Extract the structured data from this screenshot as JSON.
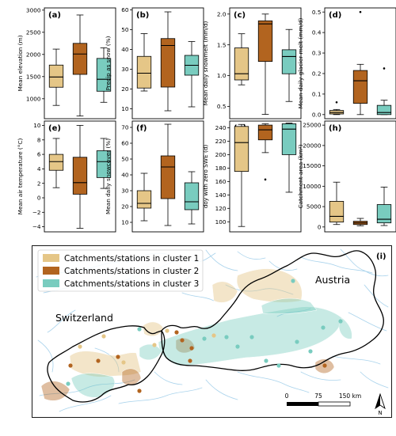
{
  "colors": {
    "cluster1": "#e5c687",
    "cluster2": "#b2641f",
    "cluster3": "#79ccbf",
    "median": "#000000",
    "river": "#a9d3ec",
    "border": "#000000"
  },
  "chart_data": [
    {
      "type": "box",
      "panel_label": "(a)",
      "ylabel": "Mean elevation (m)",
      "ylim": [
        550,
        3050
      ],
      "yticks": [
        1000,
        1500,
        2000,
        2500,
        3000
      ],
      "ytick_labels": [
        "1000",
        "1500",
        "2000",
        "2500",
        "3000"
      ],
      "boxes": [
        {
          "cluster": 1,
          "whislo": 850,
          "q1": 1260,
          "med": 1490,
          "q3": 1760,
          "whishi": 2120,
          "fliers": []
        },
        {
          "cluster": 2,
          "whislo": 610,
          "q1": 1550,
          "med": 2010,
          "q3": 2250,
          "whishi": 2890,
          "fliers": []
        },
        {
          "cluster": 3,
          "whislo": 920,
          "q1": 1170,
          "med": 1440,
          "q3": 1910,
          "whishi": 2150,
          "fliers": []
        }
      ]
    },
    {
      "type": "box",
      "panel_label": "(b)",
      "ylabel": "Precip as snow (%)",
      "ylim": [
        5,
        61
      ],
      "yticks": [
        10,
        20,
        30,
        40,
        50,
        60
      ],
      "ytick_labels": [
        "10",
        "20",
        "30",
        "40",
        "50",
        "60"
      ],
      "boxes": [
        {
          "cluster": 1,
          "whislo": 19,
          "q1": 20.5,
          "med": 28,
          "q3": 36.5,
          "whishi": 48,
          "fliers": []
        },
        {
          "cluster": 2,
          "whislo": 9,
          "q1": 21,
          "med": 42,
          "q3": 45.5,
          "whishi": 59,
          "fliers": []
        },
        {
          "cluster": 3,
          "whislo": 11,
          "q1": 27,
          "med": 32,
          "q3": 37,
          "whishi": 44,
          "fliers": []
        }
      ]
    },
    {
      "type": "box",
      "panel_label": "(c)",
      "ylabel": "Mean daily snowmelt (mm/d)",
      "ylim": [
        0.3,
        2.1
      ],
      "yticks": [
        0.5,
        1.0,
        1.5,
        2.0
      ],
      "ytick_labels": [
        "0.5",
        "1.0",
        "1.5",
        "2.0"
      ],
      "boxes": [
        {
          "cluster": 1,
          "whislo": 0.85,
          "q1": 0.93,
          "med": 1.03,
          "q3": 1.45,
          "whishi": 1.68,
          "fliers": []
        },
        {
          "cluster": 2,
          "whislo": 0.37,
          "q1": 1.23,
          "med": 1.84,
          "q3": 1.89,
          "whishi": 2.0,
          "fliers": []
        },
        {
          "cluster": 3,
          "whislo": 0.58,
          "q1": 1.03,
          "med": 1.31,
          "q3": 1.42,
          "whishi": 1.75,
          "fliers": []
        }
      ]
    },
    {
      "type": "box",
      "panel_label": "(d)",
      "ylabel": "Mean daily glacier melt (mm/d)",
      "ylim": [
        -0.02,
        0.52
      ],
      "yticks": [
        0.0,
        0.1,
        0.2,
        0.3,
        0.4,
        0.5
      ],
      "ytick_labels": [
        "0.0",
        "0.1",
        "0.2",
        "0.3",
        "0.4",
        "0.5"
      ],
      "boxes": [
        {
          "cluster": 1,
          "whislo": 0,
          "q1": 0.003,
          "med": 0.01,
          "q3": 0.02,
          "whishi": 0.025,
          "fliers": [
            0.06
          ]
        },
        {
          "cluster": 2,
          "whislo": 0.0,
          "q1": 0.055,
          "med": 0.165,
          "q3": 0.215,
          "whishi": 0.245,
          "fliers": [
            0.5
          ]
        },
        {
          "cluster": 3,
          "whislo": 0,
          "q1": 0.0,
          "med": 0.01,
          "q3": 0.045,
          "whishi": 0.07,
          "fliers": [
            0.225
          ]
        }
      ]
    },
    {
      "type": "box",
      "panel_label": "(e)",
      "ylabel": "Mean air temperature (°C)",
      "ylim": [
        -4.7,
        10.6
      ],
      "yticks": [
        -4,
        -2,
        0,
        2,
        4,
        6,
        8,
        10
      ],
      "ytick_labels": [
        "−4",
        "−2",
        "0",
        "2",
        "4",
        "6",
        "8",
        "10"
      ],
      "boxes": [
        {
          "cluster": 1,
          "whislo": 1.4,
          "q1": 3.8,
          "med": 5.0,
          "q3": 6.0,
          "whishi": 8.2,
          "fliers": []
        },
        {
          "cluster": 2,
          "whislo": -4.2,
          "q1": 0.5,
          "med": 2.1,
          "q3": 5.6,
          "whishi": 10.0,
          "fliers": []
        },
        {
          "cluster": 3,
          "whislo": 1.3,
          "q1": 2.8,
          "med": 5.0,
          "q3": 6.5,
          "whishi": 8.2,
          "fliers": []
        }
      ]
    },
    {
      "type": "box",
      "panel_label": "(f)",
      "ylabel": "Mean daily snowcover (%)",
      "ylim": [
        4,
        74
      ],
      "yticks": [
        10,
        20,
        30,
        40,
        50,
        60,
        70
      ],
      "ytick_labels": [
        "10",
        "20",
        "30",
        "40",
        "50",
        "60",
        "70"
      ],
      "boxes": [
        {
          "cluster": 1,
          "whislo": 11,
          "q1": 19,
          "med": 22,
          "q3": 30,
          "whishi": 41,
          "fliers": []
        },
        {
          "cluster": 2,
          "whislo": 8,
          "q1": 25,
          "med": 45,
          "q3": 52,
          "whishi": 72,
          "fliers": []
        },
        {
          "cluster": 3,
          "whislo": 9,
          "q1": 18,
          "med": 23,
          "q3": 35,
          "whishi": 42,
          "fliers": []
        }
      ]
    },
    {
      "type": "box",
      "panel_label": "(g)",
      "ylabel": "doy with zero SWE (d)",
      "ylim": [
        85,
        250
      ],
      "yticks": [
        100,
        120,
        140,
        160,
        180,
        200,
        220,
        240
      ],
      "ytick_labels": [
        "100",
        "120",
        "140",
        "160",
        "180",
        "200",
        "220",
        "240"
      ],
      "boxes": [
        {
          "cluster": 1,
          "whislo": 93,
          "q1": 175,
          "med": 218,
          "q3": 242,
          "whishi": 245,
          "fliers": []
        },
        {
          "cluster": 2,
          "whislo": 203,
          "q1": 222,
          "med": 237,
          "q3": 244,
          "whishi": 246,
          "fliers": [
            163
          ]
        },
        {
          "cluster": 3,
          "whislo": 144,
          "q1": 200,
          "med": 238,
          "q3": 246,
          "whishi": 247,
          "fliers": []
        }
      ]
    },
    {
      "type": "box",
      "panel_label": "(h)",
      "ylabel": "Catchment area (km²)",
      "ylim": [
        -1200,
        26000
      ],
      "yticks": [
        0,
        5000,
        10000,
        15000,
        20000,
        25000
      ],
      "ytick_labels": [
        "0",
        "5000",
        "10000",
        "15000",
        "20000",
        "25000"
      ],
      "boxes": [
        {
          "cluster": 1,
          "whislo": 600,
          "q1": 1200,
          "med": 2600,
          "q3": 6300,
          "whishi": 11000,
          "fliers": []
        },
        {
          "cluster": 2,
          "whislo": 300,
          "q1": 600,
          "med": 1000,
          "q3": 1400,
          "whishi": 2100,
          "fliers": []
        },
        {
          "cluster": 3,
          "whislo": 350,
          "q1": 1000,
          "med": 1900,
          "q3": 5500,
          "whishi": 9800,
          "fliers": []
        }
      ]
    }
  ],
  "map": {
    "panel_label": "(i)",
    "legend": [
      {
        "label": "Catchments/stations in cluster 1",
        "cluster": 1
      },
      {
        "label": "Catchments/stations in cluster 2",
        "cluster": 2
      },
      {
        "label": "Catchments/stations in cluster 3",
        "cluster": 3
      }
    ],
    "country_labels": [
      "Switzerland",
      "Austria"
    ],
    "scalebar": {
      "labels": [
        "0",
        "75",
        "150 km"
      ]
    },
    "north_arrow_label": "N"
  }
}
